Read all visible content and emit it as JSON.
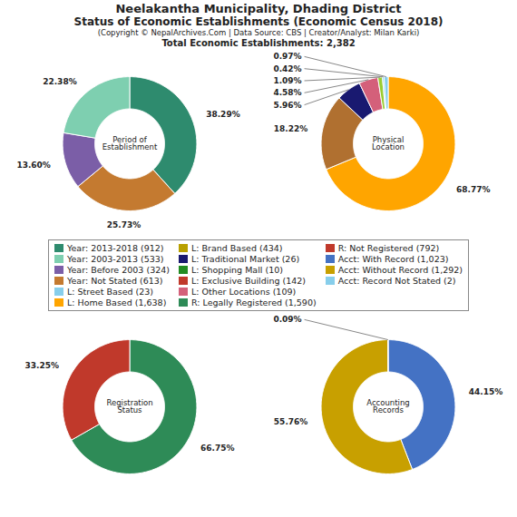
{
  "title": "Neelakantha Municipality, Dhading District\nStatus of Economic Establishments (Economic Census 2018)",
  "subtitle": "(Copyright © NepalArchives.Com | Data Source: CBS | Creator/Analyst: Milan Karki)",
  "annotations": [
    "Total Economic Establishments: 2,382"
  ],
  "legend_entries": [
    {
      "label": "Year: 2013-2018 (912)",
      "color": "#2e8b6e"
    },
    {
      "label": "Year: 2003-2013 (533)",
      "color": "#7ecfb0"
    },
    {
      "label": "Year: Before 2003 (324)",
      "color": "#7b5ea7"
    },
    {
      "label": "Year: Not Stated (613)",
      "color": "#c47a30"
    },
    {
      "label": "L: Street Based (23)",
      "color": "#87ceeb"
    },
    {
      "label": "L: Home Based (1,638)",
      "color": "#ffa500"
    },
    {
      "label": "L: Brand Based (434)",
      "color": "#b8a000"
    },
    {
      "label": "L: Traditional Market (26)",
      "color": "#191970"
    },
    {
      "label": "L: Shopping Mall (10)",
      "color": "#228b22"
    },
    {
      "label": "L: Exclusive Building (142)",
      "color": "#c0392b"
    },
    {
      "label": "L: Other Locations (109)",
      "color": "#d4607a"
    },
    {
      "label": "R: Legally Registered (1,590)",
      "color": "#2e8b57"
    },
    {
      "label": "R: Not Registered (792)",
      "color": "#c0392b"
    },
    {
      "label": "Acct: With Record (1,023)",
      "color": "#4472c4"
    },
    {
      "label": "Acct: Without Record (1,292)",
      "color": "#c8a000"
    },
    {
      "label": "Acct: Record Not Stated (2)",
      "color": "#87ceeb"
    }
  ],
  "chart_data": [
    {
      "type": "donut",
      "title": "Period of\nEstablishment",
      "values": [
        38.29,
        25.73,
        13.6,
        22.38
      ],
      "value_labels": [
        "38.29%",
        "25.73%",
        "13.60%",
        "22.38%"
      ],
      "colors": [
        "#2e8b6e",
        "#c47a30",
        "#7b5ea7",
        "#7ecfb0"
      ],
      "data_labels": true
    },
    {
      "type": "donut",
      "title": "Physical\nLocation",
      "values": [
        68.77,
        18.22,
        5.96,
        4.58,
        1.09,
        0.42,
        0.97
      ],
      "value_labels": [
        "68.77%",
        "18.22%",
        "5.96%",
        "4.58%",
        "1.09%",
        "0.42%",
        "0.97%"
      ],
      "colors": [
        "#ffa500",
        "#b07030",
        "#191970",
        "#d4607a",
        "#9acd32",
        "#87ceeb",
        "#87ceeb"
      ],
      "data_labels": true
    },
    {
      "type": "donut",
      "title": "Registration\nStatus",
      "values": [
        66.75,
        33.25
      ],
      "value_labels": [
        "66.75%",
        "33.25%"
      ],
      "colors": [
        "#2e8b57",
        "#c0392b"
      ],
      "data_labels": true
    },
    {
      "type": "donut",
      "title": "Accounting\nRecords",
      "values": [
        44.15,
        55.76,
        0.09
      ],
      "value_labels": [
        "44.15%",
        "55.76%",
        "0.09%"
      ],
      "colors": [
        "#4472c4",
        "#c8a000",
        "#87ceeb"
      ],
      "data_labels": true
    }
  ]
}
